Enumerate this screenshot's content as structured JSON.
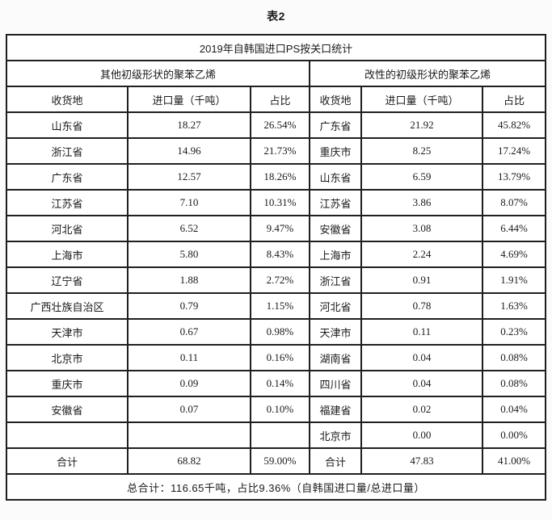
{
  "page": {
    "caption": "表2"
  },
  "table": {
    "title": "2019年自韩国进口PS按关口统计",
    "sections": [
      {
        "label": "其他初级形状的聚苯乙烯"
      },
      {
        "label": "改性的初级形状的聚苯乙烯"
      }
    ],
    "columns": [
      "收货地",
      "进口量（千吨）",
      "占比",
      "收货地",
      "进口量（千吨）",
      "占比"
    ],
    "rows": [
      [
        "山东省",
        "18.27",
        "26.54%",
        "广东省",
        "21.92",
        "45.82%"
      ],
      [
        "浙江省",
        "14.96",
        "21.73%",
        "重庆市",
        "8.25",
        "17.24%"
      ],
      [
        "广东省",
        "12.57",
        "18.26%",
        "山东省",
        "6.59",
        "13.79%"
      ],
      [
        "江苏省",
        "7.10",
        "10.31%",
        "江苏省",
        "3.86",
        "8.07%"
      ],
      [
        "河北省",
        "6.52",
        "9.47%",
        "安徽省",
        "3.08",
        "6.44%"
      ],
      [
        "上海市",
        "5.80",
        "8.43%",
        "上海市",
        "2.24",
        "4.69%"
      ],
      [
        "辽宁省",
        "1.88",
        "2.72%",
        "浙江省",
        "0.91",
        "1.91%"
      ],
      [
        "广西壮族自治区",
        "0.79",
        "1.15%",
        "河北省",
        "0.78",
        "1.63%"
      ],
      [
        "天津市",
        "0.67",
        "0.98%",
        "天津市",
        "0.11",
        "0.23%"
      ],
      [
        "北京市",
        "0.11",
        "0.16%",
        "湖南省",
        "0.04",
        "0.08%"
      ],
      [
        "重庆市",
        "0.09",
        "0.14%",
        "四川省",
        "0.04",
        "0.08%"
      ],
      [
        "安徽省",
        "0.07",
        "0.10%",
        "福建省",
        "0.02",
        "0.04%"
      ],
      [
        "",
        "",
        "",
        "北京市",
        "0.00",
        "0.00%"
      ]
    ],
    "totals": [
      "合计",
      "68.82",
      "59.00%",
      "合计",
      "47.83",
      "41.00%"
    ],
    "footer": "总合计：116.65千吨，占比9.36%（自韩国进口量/总进口量）"
  },
  "colors": {
    "border": "#1f1f1f",
    "text": "#1a1a1a",
    "table_background": "#ffffff",
    "page_background": "#fbfbfb"
  }
}
